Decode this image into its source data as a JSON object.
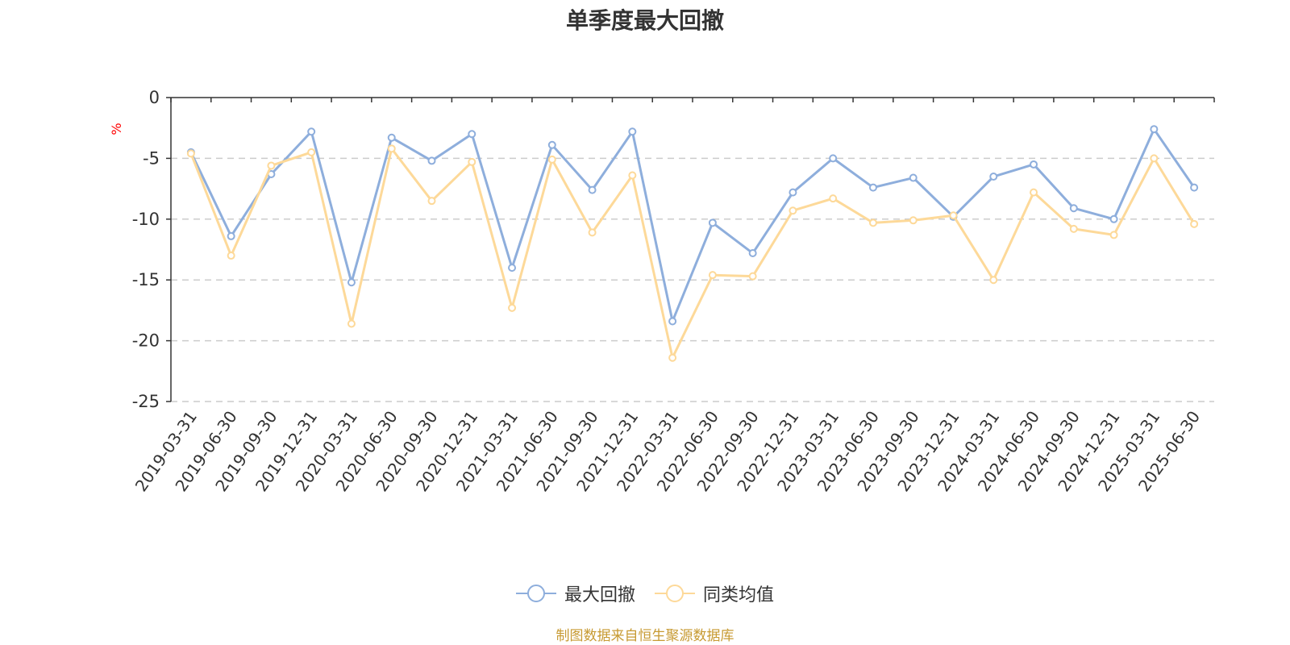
{
  "chart_data": {
    "type": "line",
    "title": "单季度最大回撤",
    "ylabel": "%",
    "ylim": [
      -25,
      0
    ],
    "yticks": [
      0,
      -5,
      -10,
      -15,
      -20,
      -25
    ],
    "grid": true,
    "legend_position": "bottom-center",
    "categories": [
      "2019-03-31",
      "2019-06-30",
      "2019-09-30",
      "2019-12-31",
      "2020-03-31",
      "2020-06-30",
      "2020-09-30",
      "2020-12-31",
      "2021-03-31",
      "2021-06-30",
      "2021-09-30",
      "2021-12-31",
      "2022-03-31",
      "2022-06-30",
      "2022-09-30",
      "2022-12-31",
      "2023-03-31",
      "2023-06-30",
      "2023-09-30",
      "2023-12-31",
      "2024-03-31",
      "2024-06-30",
      "2024-09-30",
      "2024-12-31",
      "2025-03-31",
      "2025-06-30"
    ],
    "series": [
      {
        "name": "最大回撤",
        "color": "#8eaedc",
        "values": [
          -4.5,
          -11.4,
          -6.3,
          -2.8,
          -15.2,
          -3.3,
          -5.2,
          -3.0,
          -14.0,
          -3.9,
          -7.6,
          -2.8,
          -18.4,
          -10.3,
          -12.8,
          -7.8,
          -5.0,
          -7.4,
          -6.6,
          -9.8,
          -6.5,
          -5.5,
          -9.1,
          -10.0,
          -2.6,
          -7.4
        ]
      },
      {
        "name": "同类均值",
        "color": "#fdd999",
        "values": [
          -4.6,
          -13.0,
          -5.6,
          -4.5,
          -18.6,
          -4.2,
          -8.5,
          -5.3,
          -17.3,
          -5.1,
          -11.1,
          -6.4,
          -21.4,
          -14.6,
          -14.7,
          -9.3,
          -8.3,
          -10.3,
          -10.1,
          -9.7,
          -15.0,
          -7.8,
          -10.8,
          -11.3,
          -5.0,
          -10.4
        ]
      }
    ]
  },
  "source_note": "制图数据来自恒生聚源数据库"
}
